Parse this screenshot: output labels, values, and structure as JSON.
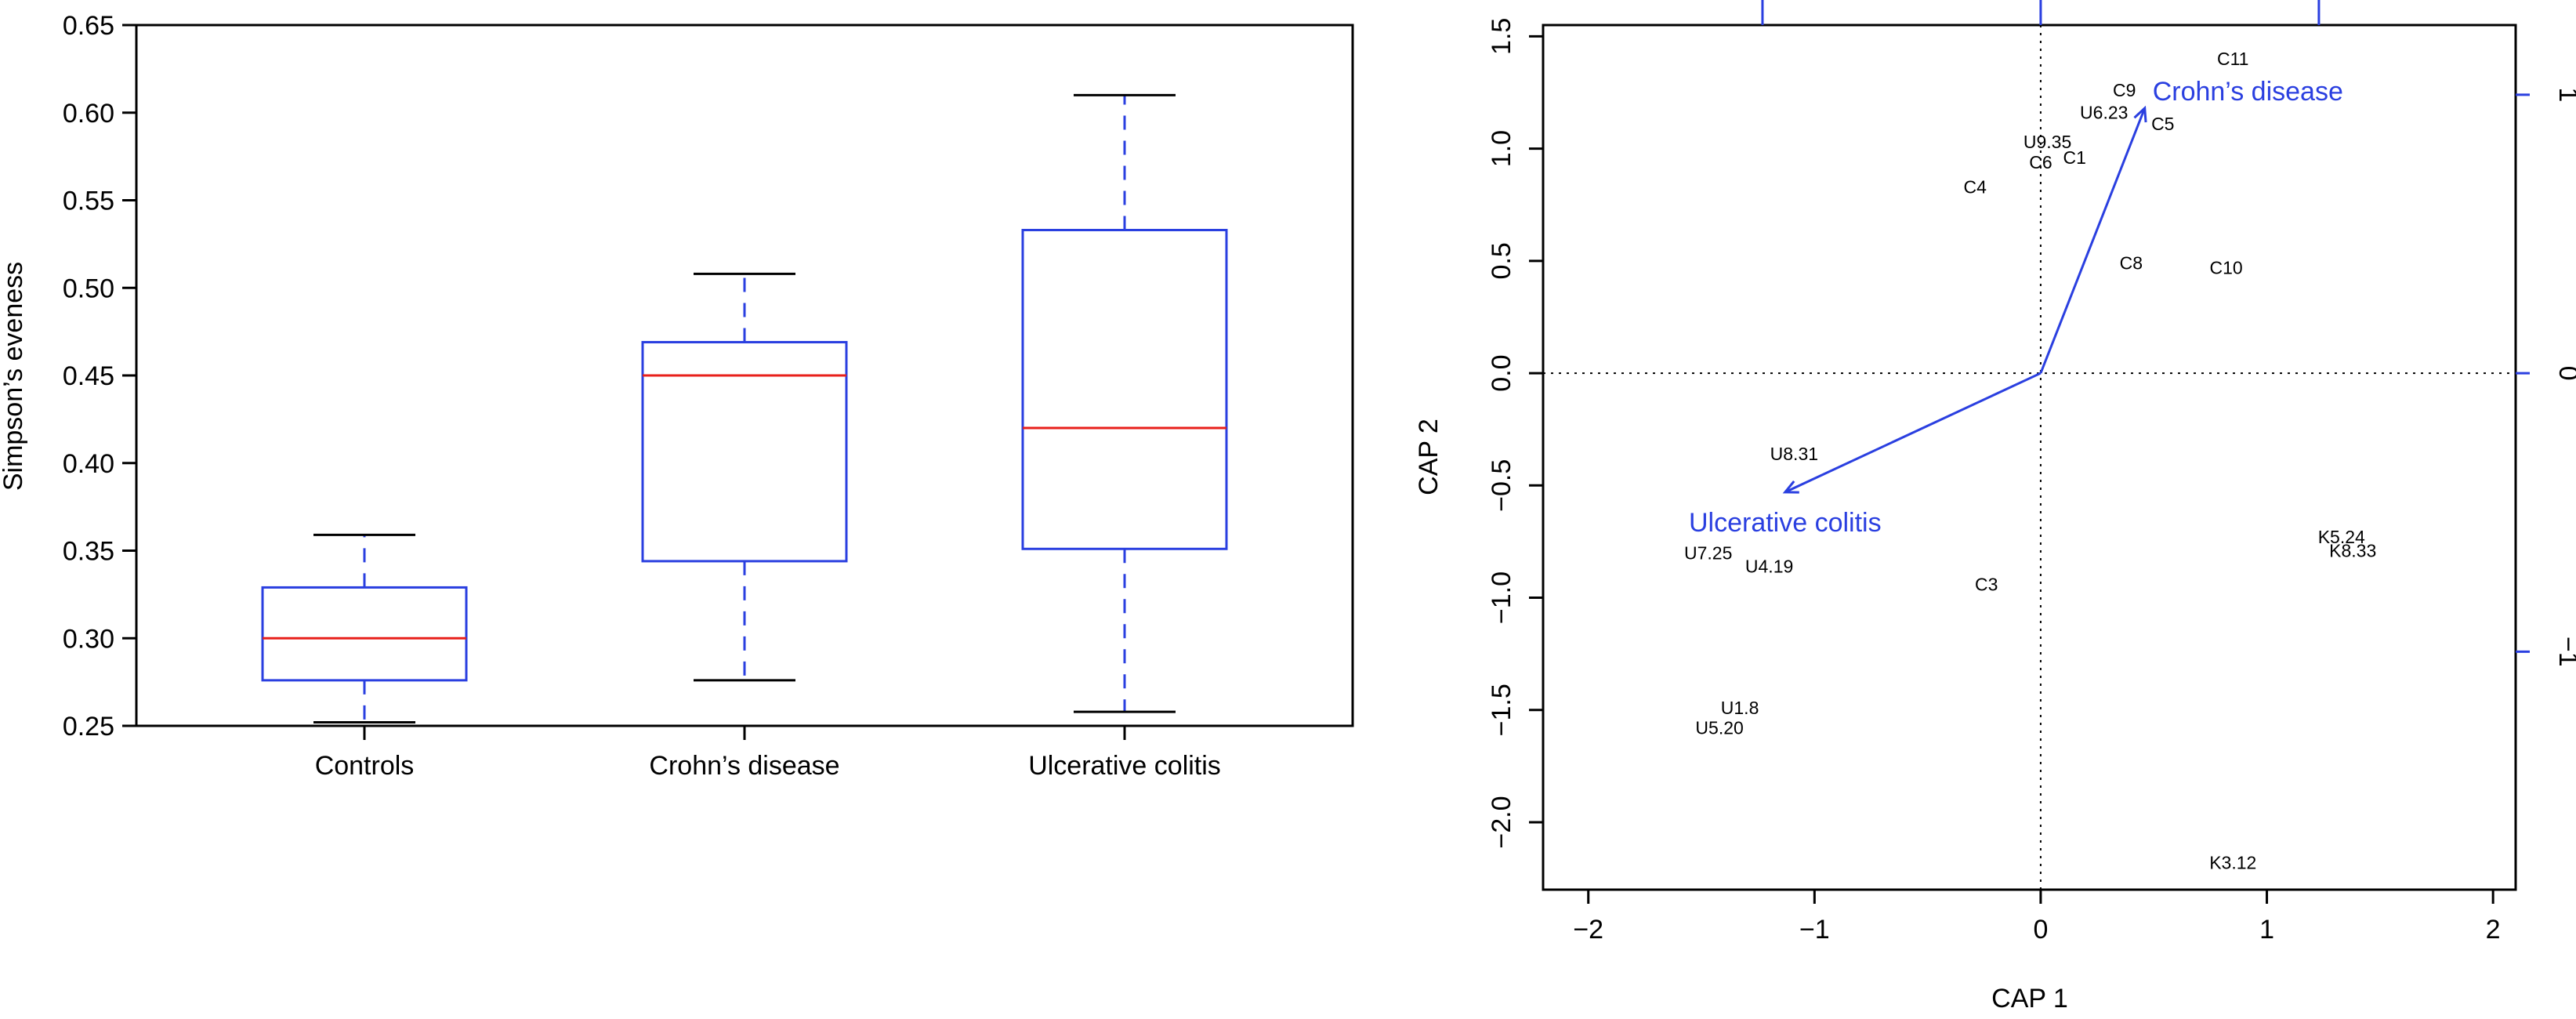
{
  "colors": {
    "box": "#2a3fe0",
    "median": "#e8201b",
    "whisker_cap": "#000000",
    "arrow": "#2a3fe0",
    "point_label": "#000000",
    "axis": "#000000"
  },
  "chart_data": [
    {
      "type": "boxplot",
      "title": "",
      "xlabel": "",
      "ylabel": "Simpson’s eveness",
      "ylim": [
        0.25,
        0.65
      ],
      "yticks": [
        "0.25",
        "0.30",
        "0.35",
        "0.40",
        "0.45",
        "0.50",
        "0.55",
        "0.60",
        "0.65"
      ],
      "grid": false,
      "categories": [
        "Controls",
        "Crohn’s disease",
        "Ulcerative colitis"
      ],
      "boxes": [
        {
          "whisker_low": 0.252,
          "q1": 0.276,
          "median": 0.3,
          "q3": 0.329,
          "whisker_high": 0.359
        },
        {
          "whisker_low": 0.276,
          "q1": 0.344,
          "median": 0.45,
          "q3": 0.469,
          "whisker_high": 0.508
        },
        {
          "whisker_low": 0.258,
          "q1": 0.351,
          "median": 0.42,
          "q3": 0.533,
          "whisker_high": 0.61
        }
      ]
    },
    {
      "type": "scatter",
      "title": "",
      "xlabel": "CAP 1",
      "ylabel": "CAP 2",
      "xlim": [
        -2.2,
        2.1
      ],
      "ylim": [
        -2.3,
        1.55
      ],
      "xticks": [
        "−2",
        "−1",
        "0",
        "1",
        "2"
      ],
      "yticks": [
        "−2.0",
        "−1.5",
        "−1.0",
        "−0.5",
        "0.0",
        "0.5",
        "1.0",
        "1.5"
      ],
      "top_axis_ticks_at_x": [
        -1.23,
        0,
        1.23
      ],
      "right_axis_ticks": [
        "1",
        "0",
        "−1"
      ],
      "right_axis_ticks_at_y": [
        1.24,
        0,
        -1.24
      ],
      "grid": false,
      "reference_lines": "dotted at x=0 and y=0",
      "points": [
        {
          "label": "C11",
          "x": 0.85,
          "y": 1.4
        },
        {
          "label": "C9",
          "x": 0.37,
          "y": 1.26
        },
        {
          "label": "U6.23",
          "x": 0.28,
          "y": 1.16
        },
        {
          "label": "C5",
          "x": 0.54,
          "y": 1.11
        },
        {
          "label": "U9.35",
          "x": 0.03,
          "y": 1.03
        },
        {
          "label": "C6",
          "x": 0.0,
          "y": 0.94
        },
        {
          "label": "C1",
          "x": 0.15,
          "y": 0.96
        },
        {
          "label": "C4",
          "x": -0.29,
          "y": 0.83
        },
        {
          "label": "C8",
          "x": 0.4,
          "y": 0.49
        },
        {
          "label": "C10",
          "x": 0.82,
          "y": 0.47
        },
        {
          "label": "U8.31",
          "x": -1.09,
          "y": -0.36
        },
        {
          "label": "U7.25",
          "x": -1.47,
          "y": -0.8
        },
        {
          "label": "U4.19",
          "x": -1.2,
          "y": -0.86
        },
        {
          "label": "C3",
          "x": -0.24,
          "y": -0.94
        },
        {
          "label": "K5.24",
          "x": 1.33,
          "y": -0.73
        },
        {
          "label": "K8.33",
          "x": 1.38,
          "y": -0.79
        },
        {
          "label": "U1.8",
          "x": -1.33,
          "y": -1.49
        },
        {
          "label": "U5.20",
          "x": -1.42,
          "y": -1.58
        },
        {
          "label": "K3.12",
          "x": 0.85,
          "y": -2.18
        }
      ],
      "vectors": [
        {
          "label": "Crohn’s disease",
          "x": 0.46,
          "y": 1.18
        },
        {
          "label": "Ulcerative colitis",
          "x": -1.13,
          "y": -0.53
        }
      ]
    }
  ]
}
